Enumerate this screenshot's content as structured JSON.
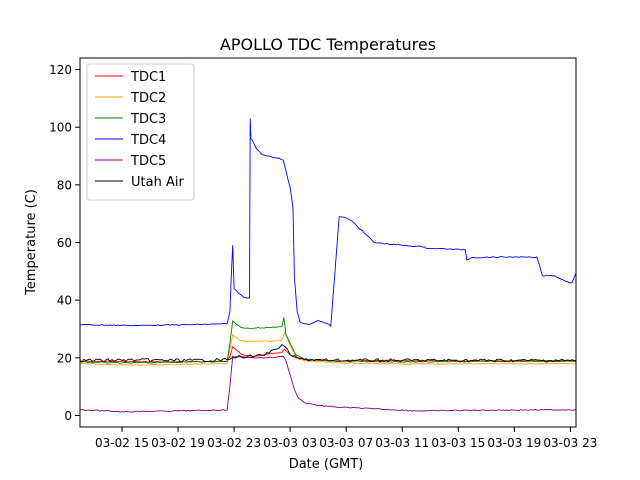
{
  "chart_data": {
    "type": "line",
    "title": "APOLLO TDC Temperatures",
    "xlabel": "Date (GMT)",
    "ylabel": "Temperature (C)",
    "xlim": [
      12.0,
      47.4
    ],
    "ylim": [
      -4,
      124
    ],
    "grid": false,
    "legend_position": "top-left",
    "x_units": "hours since 03-02 00:00 GMT",
    "x_ticks": [
      {
        "x": 15,
        "label": "03-02 15"
      },
      {
        "x": 19,
        "label": "03-02 19"
      },
      {
        "x": 23,
        "label": "03-02 23"
      },
      {
        "x": 27,
        "label": "03-03 03"
      },
      {
        "x": 31,
        "label": "03-03 07"
      },
      {
        "x": 35,
        "label": "03-03 11"
      },
      {
        "x": 39,
        "label": "03-03 15"
      },
      {
        "x": 43,
        "label": "03-03 19"
      },
      {
        "x": 47,
        "label": "03-03 23"
      }
    ],
    "y_ticks": [
      0,
      20,
      40,
      60,
      80,
      100,
      120
    ],
    "series": [
      {
        "name": "TDC1",
        "color": "#ff0000",
        "x": [
          12.0,
          18.0,
          22.5,
          22.7,
          22.9,
          23.2,
          23.5,
          24.0,
          24.5,
          25.0,
          26.0,
          26.4,
          26.6,
          27.0,
          27.4,
          28.0,
          30.0,
          47.4
        ],
        "y": [
          18.8,
          18.6,
          18.7,
          20.5,
          23.8,
          22.5,
          21.3,
          20.8,
          20.6,
          21.0,
          21.6,
          21.8,
          23.0,
          21.0,
          20.0,
          19.3,
          19.0,
          19.0
        ]
      },
      {
        "name": "TDC2",
        "color": "#ffa500",
        "x": [
          12.0,
          15.0,
          18.0,
          22.5,
          22.7,
          22.9,
          23.2,
          23.5,
          24.0,
          25.0,
          26.0,
          26.4,
          26.6,
          26.8,
          27.0,
          27.4,
          28.0,
          30.0,
          35.0,
          40.0,
          47.4
        ],
        "y": [
          18.0,
          17.5,
          17.6,
          18.0,
          23.0,
          28.0,
          26.8,
          26.0,
          25.7,
          25.7,
          25.9,
          26.0,
          28.7,
          27.0,
          24.0,
          20.5,
          19.0,
          18.3,
          17.8,
          17.9,
          18.0
        ]
      },
      {
        "name": "TDC3",
        "color": "#008000",
        "x": [
          12.0,
          15.0,
          18.0,
          22.5,
          22.7,
          22.9,
          23.2,
          23.5,
          24.0,
          25.0,
          26.0,
          26.4,
          26.55,
          26.7,
          27.0,
          27.4,
          28.0,
          30.0,
          35.0,
          40.0,
          47.4
        ],
        "y": [
          18.6,
          18.2,
          18.4,
          18.8,
          25.0,
          32.8,
          31.5,
          30.5,
          30.3,
          30.4,
          30.6,
          30.8,
          34.0,
          28.0,
          25.0,
          21.0,
          19.5,
          18.9,
          18.6,
          18.7,
          18.8
        ]
      },
      {
        "name": "TDC4",
        "color": "#0000ff",
        "x": [
          12.0,
          16.0,
          20.0,
          22.5,
          22.7,
          22.8,
          22.9,
          23.0,
          23.3,
          23.7,
          24.1,
          24.15,
          24.2,
          24.3,
          24.6,
          25.0,
          25.6,
          26.2,
          26.5,
          27.0,
          27.2,
          27.3,
          27.5,
          27.7,
          28.0,
          28.3,
          29.0,
          29.8,
          29.9,
          30.5,
          31.0,
          31.2,
          31.4,
          33.0,
          35.0,
          36.6,
          36.7,
          37.0,
          39.5,
          39.6,
          40.0,
          43.0,
          44.5,
          44.6,
          45.0,
          45.9,
          46.0,
          46.5,
          47.0,
          47.1,
          47.4
        ],
        "y": [
          31.5,
          31.2,
          31.5,
          31.8,
          36.0,
          48.5,
          59.0,
          44.0,
          42.5,
          41.0,
          40.8,
          103.0,
          96.0,
          95.5,
          92.5,
          90.5,
          89.8,
          89.3,
          88.6,
          79.0,
          72.0,
          48.0,
          36.0,
          32.5,
          31.8,
          31.5,
          33.0,
          31.5,
          31.0,
          69.0,
          68.5,
          68.0,
          67.5,
          60.0,
          59.0,
          58.5,
          58.0,
          58.0,
          57.5,
          54.0,
          54.8,
          55.0,
          54.8,
          55.0,
          48.5,
          48.5,
          48.0,
          47.0,
          46.0,
          46.0,
          49.5
        ]
      },
      {
        "name": "TDC5",
        "color": "#800080",
        "x": [
          12.0,
          15.0,
          18.0,
          22.5,
          22.7,
          22.9,
          23.3,
          24.0,
          25.0,
          26.0,
          26.5,
          26.7,
          27.0,
          27.3,
          27.6,
          28.0,
          29.0,
          30.0,
          33.0,
          36.0,
          40.0,
          47.4
        ],
        "y": [
          2.0,
          1.3,
          1.5,
          1.9,
          10.0,
          20.5,
          20.4,
          20.1,
          20.0,
          20.2,
          20.5,
          19.0,
          14.0,
          9.0,
          6.0,
          4.5,
          3.5,
          3.0,
          2.3,
          1.6,
          1.8,
          2.0
        ]
      },
      {
        "name": "Utah Air",
        "color": "#000000",
        "x": [
          12.0,
          16.0,
          20.0,
          22.5,
          22.7,
          22.9,
          23.5,
          24.0,
          24.5,
          25.0,
          25.5,
          26.0,
          26.4,
          26.6,
          27.0,
          27.5,
          28.0,
          30.0,
          35.0,
          40.0,
          47.4
        ],
        "y": [
          19.1,
          19.2,
          19.1,
          19.3,
          19.5,
          20.2,
          20.4,
          20.5,
          20.6,
          20.9,
          21.6,
          23.0,
          24.6,
          24.0,
          21.0,
          20.0,
          19.4,
          19.1,
          19.1,
          19.1,
          19.1
        ]
      }
    ]
  }
}
